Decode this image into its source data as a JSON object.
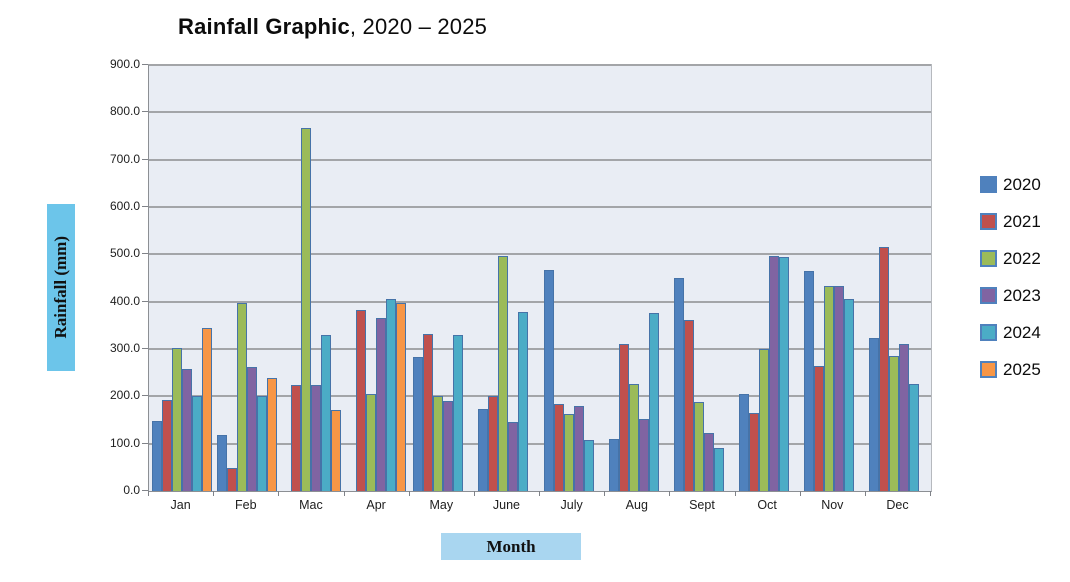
{
  "title": {
    "bold": "Rainfall Graphic",
    "rest": ", 2020 – 2025"
  },
  "chart_data": {
    "type": "bar",
    "title": "Rainfall Graphic, 2020 – 2025",
    "xlabel": "Month",
    "ylabel": "Rainfall (mm)",
    "ylim": [
      0,
      900
    ],
    "ytick_step": 100,
    "ytick_decimals": 1,
    "grid": true,
    "legend_position": "right",
    "plot_background": "#e9edf4",
    "bar_border_color": "#4673a8",
    "categories": [
      "Jan",
      "Feb",
      "Mac",
      "Apr",
      "May",
      "June",
      "July",
      "Aug",
      "Sept",
      "Oct",
      "Nov",
      "Dec"
    ],
    "series": [
      {
        "name": "2020",
        "color": "#4F81BD",
        "values": [
          147,
          118,
          0,
          0,
          284,
          173,
          466,
          110,
          450,
          204,
          464,
          324
        ]
      },
      {
        "name": "2021",
        "color": "#C0504D",
        "values": [
          192,
          48,
          224,
          383,
          332,
          200,
          184,
          311,
          361,
          165,
          264,
          515
        ]
      },
      {
        "name": "2022",
        "color": "#9BBB59",
        "values": [
          303,
          398,
          766,
          205,
          200,
          496,
          162,
          226,
          188,
          299,
          433,
          286
        ]
      },
      {
        "name": "2023",
        "color": "#8064A2",
        "values": [
          258,
          262,
          224,
          366,
          191,
          145,
          179,
          153,
          123,
          496,
          433,
          310
        ]
      },
      {
        "name": "2024",
        "color": "#4BACC6",
        "values": [
          200,
          200,
          329,
          406,
          329,
          378,
          107,
          376,
          91,
          494,
          405,
          227
        ]
      },
      {
        "name": "2025",
        "color": "#F79646",
        "values": [
          345,
          239,
          172,
          397,
          0,
          0,
          0,
          0,
          0,
          0,
          0,
          0
        ]
      }
    ]
  }
}
